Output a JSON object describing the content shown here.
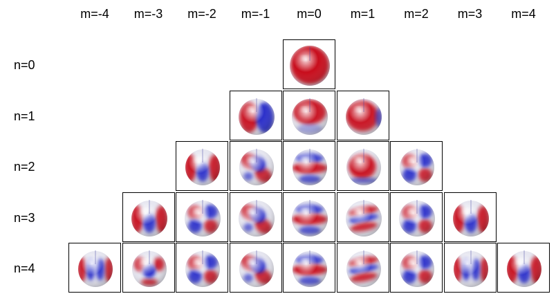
{
  "column_labels": [
    "m=-4",
    "m=-3",
    "m=-2",
    "m=-1",
    "m=0",
    "m=1",
    "m=2",
    "m=3",
    "m=4"
  ],
  "row_labels": [
    "n=0",
    "n=1",
    "n=2",
    "n=3",
    "n=4"
  ],
  "colors": {
    "positive": "#c8101a",
    "negative": "#2028c8",
    "neutral": "#e6e6f0"
  },
  "cells": [
    {
      "n": 0,
      "m": 0,
      "pattern": "solid-red"
    },
    {
      "n": 1,
      "m": -1,
      "pattern": "red-left-blue-right"
    },
    {
      "n": 1,
      "m": 0,
      "pattern": "red-top-light-bottom"
    },
    {
      "n": 1,
      "m": 1,
      "pattern": "mostly-red-blue-edge"
    },
    {
      "n": 2,
      "m": -2,
      "pattern": "red-sides-blue-center"
    },
    {
      "n": 2,
      "m": -1,
      "pattern": "red-blue-diagonal"
    },
    {
      "n": 2,
      "m": 0,
      "pattern": "red-band-blue-bands"
    },
    {
      "n": 2,
      "m": 1,
      "pattern": "red-center-blue-rim"
    },
    {
      "n": 2,
      "m": 2,
      "pattern": "red-blue-quadrants"
    },
    {
      "n": 3,
      "m": -3,
      "pattern": "red-sides-blue-center"
    },
    {
      "n": 3,
      "m": -2,
      "pattern": "red-blue-quadrants"
    },
    {
      "n": 3,
      "m": -1,
      "pattern": "red-blue-diagonal"
    },
    {
      "n": 3,
      "m": 0,
      "pattern": "red-band-blue-bands"
    },
    {
      "n": 3,
      "m": 1,
      "pattern": "red-blue-stripes"
    },
    {
      "n": 3,
      "m": 2,
      "pattern": "red-blue-quadrants"
    },
    {
      "n": 3,
      "m": 3,
      "pattern": "red-sides-blue-center"
    },
    {
      "n": 4,
      "m": -4,
      "pattern": "red-blue-lobes"
    },
    {
      "n": 4,
      "m": -3,
      "pattern": "red-ring-blue-center"
    },
    {
      "n": 4,
      "m": -2,
      "pattern": "red-blue-quadrants"
    },
    {
      "n": 4,
      "m": -1,
      "pattern": "red-blue-diagonal"
    },
    {
      "n": 4,
      "m": 0,
      "pattern": "red-band-blue-bands"
    },
    {
      "n": 4,
      "m": 1,
      "pattern": "red-blue-stripes"
    },
    {
      "n": 4,
      "m": 2,
      "pattern": "red-blue-quadrants"
    },
    {
      "n": 4,
      "m": 3,
      "pattern": "red-blue-lobes"
    },
    {
      "n": 4,
      "m": 4,
      "pattern": "red-sides-blue-center"
    }
  ]
}
